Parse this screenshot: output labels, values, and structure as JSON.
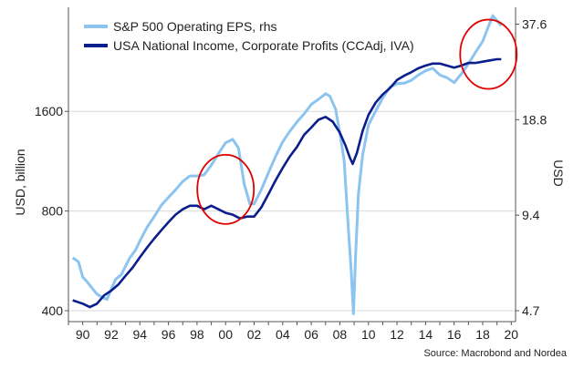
{
  "chart_data": {
    "type": "line",
    "x_unit": "year",
    "x_tick_labels": [
      "90",
      "92",
      "94",
      "96",
      "98",
      "00",
      "02",
      "04",
      "06",
      "08",
      "10",
      "12",
      "14",
      "16",
      "18",
      "20"
    ],
    "x_tick_years": [
      1990,
      1992,
      1994,
      1996,
      1998,
      2000,
      2002,
      2004,
      2006,
      2008,
      2010,
      2012,
      2014,
      2016,
      2018,
      2020
    ],
    "xlim": [
      1989.0,
      2020.3
    ],
    "y_left": {
      "label": "USD, billion",
      "scale": "log",
      "ticks": [
        400,
        800,
        1600
      ],
      "tick_labels": [
        "400",
        "800",
        "1600"
      ],
      "ylim": [
        400,
        3300
      ]
    },
    "y_right": {
      "label": "USD",
      "scale": "log",
      "ticks": [
        4.7,
        9.4,
        18.8,
        37.6
      ],
      "tick_labels": [
        "4.7",
        "9.4",
        "18.8",
        "37.6"
      ],
      "ylim": [
        4.7,
        42.5
      ]
    },
    "legend": {
      "position": "top-left"
    },
    "series": [
      {
        "name": "S&P 500 Operating EPS, rhs",
        "axis": "right",
        "color": "#8cc4f0",
        "x": [
          1989.3,
          1989.7,
          1990.0,
          1990.3,
          1990.7,
          1991.0,
          1991.3,
          1991.7,
          1992.0,
          1992.3,
          1992.7,
          1993.0,
          1993.3,
          1993.7,
          1994.0,
          1994.5,
          1995.0,
          1995.5,
          1996.0,
          1996.5,
          1997.0,
          1997.5,
          1998.0,
          1998.5,
          1999.0,
          1999.5,
          2000.0,
          2000.5,
          2000.9,
          2001.3,
          2001.7,
          2002.0,
          2002.5,
          2003.0,
          2003.5,
          2004.0,
          2004.5,
          2005.0,
          2005.5,
          2006.0,
          2006.5,
          2007.0,
          2007.3,
          2007.7,
          2008.0,
          2008.3,
          2008.6,
          2008.8,
          2008.95,
          2009.1,
          2009.3,
          2009.6,
          2010.0,
          2010.5,
          2011.0,
          2011.5,
          2012.0,
          2012.5,
          2013.0,
          2013.5,
          2014.0,
          2014.5,
          2015.0,
          2015.5,
          2016.0,
          2016.5,
          2017.0,
          2017.5,
          2018.0,
          2018.4,
          2018.7,
          2019.0,
          2019.3
        ],
        "values": [
          6.9,
          6.7,
          6.0,
          5.8,
          5.5,
          5.3,
          5.2,
          5.1,
          5.5,
          5.9,
          6.1,
          6.5,
          6.9,
          7.3,
          7.8,
          8.6,
          9.3,
          10.1,
          10.7,
          11.3,
          12.0,
          12.5,
          12.5,
          12.6,
          13.5,
          14.7,
          15.9,
          16.3,
          15.3,
          11.8,
          10.2,
          10.2,
          11.3,
          12.8,
          14.4,
          16.0,
          17.3,
          18.5,
          19.6,
          21.0,
          21.8,
          22.7,
          22.3,
          20.3,
          17.1,
          14.0,
          8.5,
          6.2,
          4.6,
          7.0,
          11.0,
          14.6,
          18.1,
          20.0,
          22.0,
          23.8,
          24.4,
          24.5,
          25.0,
          26.0,
          26.8,
          27.3,
          26.0,
          25.5,
          24.6,
          26.2,
          28.2,
          30.7,
          33.2,
          37.0,
          40.0,
          38.6,
          37.2
        ]
      },
      {
        "name": "USA National Income, Corporate Profits (CCAdj, IVA)",
        "axis": "left",
        "color": "#0a1e8c",
        "x": [
          1989.3,
          1990.0,
          1990.5,
          1991.0,
          1991.5,
          1992.0,
          1992.5,
          1993.0,
          1993.5,
          1994.0,
          1994.5,
          1995.0,
          1995.5,
          1996.0,
          1996.5,
          1997.0,
          1997.5,
          1998.0,
          1998.5,
          1999.0,
          1999.5,
          2000.0,
          2000.5,
          2001.0,
          2001.5,
          2002.0,
          2002.5,
          2003.0,
          2003.5,
          2004.0,
          2004.5,
          2005.0,
          2005.5,
          2006.0,
          2006.5,
          2007.0,
          2007.5,
          2008.0,
          2008.4,
          2008.7,
          2008.9,
          2009.2,
          2009.6,
          2010.0,
          2010.5,
          2011.0,
          2011.5,
          2012.0,
          2012.5,
          2013.0,
          2013.5,
          2014.0,
          2014.5,
          2015.0,
          2015.5,
          2016.0,
          2016.5,
          2017.0,
          2017.5,
          2018.0,
          2018.5,
          2019.0,
          2019.3
        ],
        "values": [
          430,
          420,
          410,
          420,
          445,
          460,
          480,
          510,
          540,
          580,
          620,
          660,
          700,
          740,
          780,
          810,
          830,
          830,
          810,
          830,
          810,
          790,
          780,
          760,
          770,
          770,
          820,
          900,
          990,
          1080,
          1170,
          1250,
          1360,
          1430,
          1510,
          1540,
          1490,
          1380,
          1260,
          1160,
          1110,
          1200,
          1400,
          1560,
          1700,
          1800,
          1880,
          1990,
          2050,
          2100,
          2160,
          2200,
          2230,
          2230,
          2200,
          2170,
          2200,
          2240,
          2240,
          2260,
          2280,
          2300,
          2300
        ]
      }
    ],
    "annotations": [
      {
        "type": "ellipse",
        "color": "#e00000",
        "x_center": 2000.0,
        "y_center_left": 930
      },
      {
        "type": "ellipse",
        "color": "#e00000",
        "x_center": 2018.4,
        "y_center_left": 2380
      }
    ],
    "source": "Source: Macrobond and Nordea"
  }
}
